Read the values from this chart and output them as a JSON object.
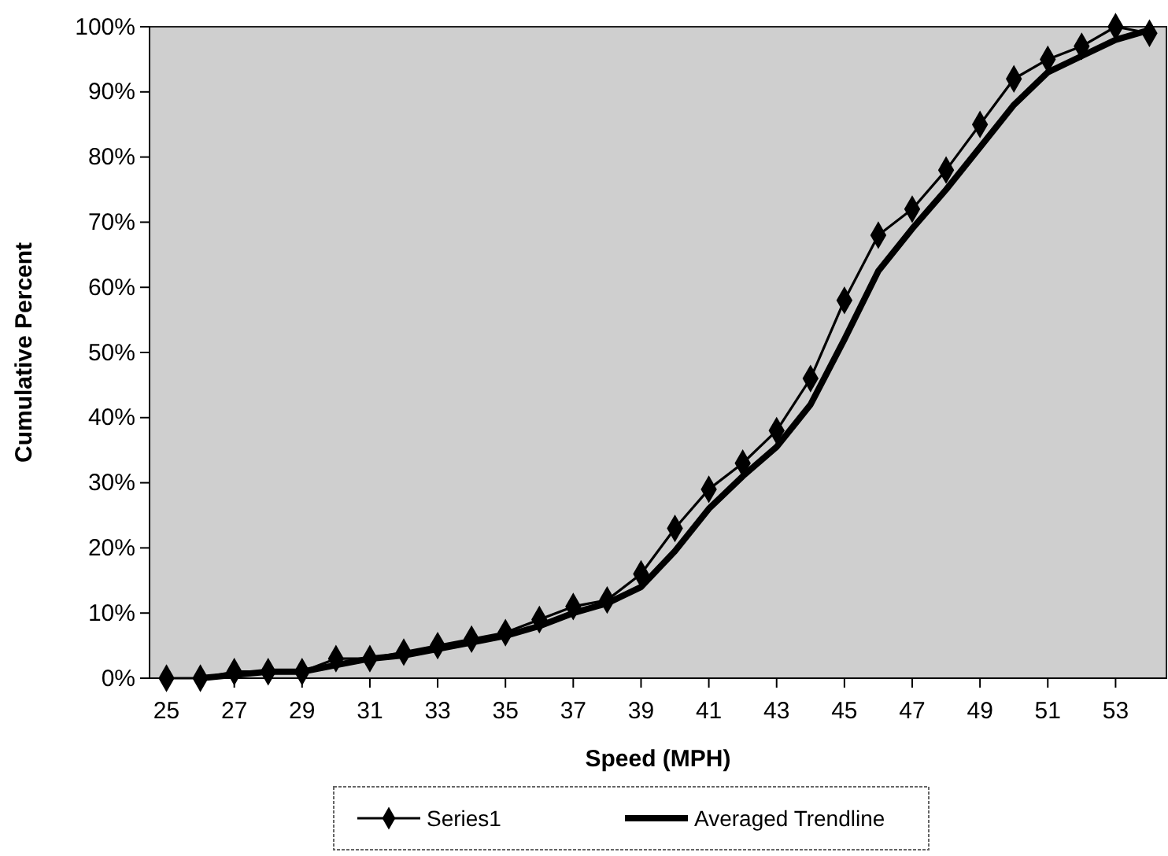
{
  "chart_data": {
    "type": "line",
    "xlabel": "Speed (MPH)",
    "ylabel": "Cumulative Percent",
    "xlim": [
      24.5,
      54.5
    ],
    "xticks": [
      25,
      27,
      29,
      31,
      33,
      35,
      37,
      39,
      41,
      43,
      45,
      47,
      49,
      51,
      53
    ],
    "ylim": [
      0,
      100
    ],
    "yticks": [
      {
        "value": 0,
        "label": "0%"
      },
      {
        "value": 10,
        "label": "10%"
      },
      {
        "value": 20,
        "label": "20%"
      },
      {
        "value": 30,
        "label": "30%"
      },
      {
        "value": 40,
        "label": "40%"
      },
      {
        "value": 50,
        "label": "50%"
      },
      {
        "value": 60,
        "label": "60%"
      },
      {
        "value": 70,
        "label": "70%"
      },
      {
        "value": 80,
        "label": "80%"
      },
      {
        "value": 90,
        "label": "90%"
      },
      {
        "value": 100,
        "label": "100%"
      }
    ],
    "grid": false,
    "legend": "bottom",
    "series": [
      {
        "name": "Series1",
        "color": "#000000",
        "marker": "diamond",
        "x": [
          25,
          26,
          27,
          28,
          29,
          30,
          31,
          32,
          33,
          34,
          35,
          36,
          37,
          38,
          39,
          40,
          41,
          42,
          43,
          44,
          45,
          46,
          47,
          48,
          49,
          50,
          51,
          52,
          53,
          54
        ],
        "values": [
          0,
          0,
          1,
          1,
          1,
          3,
          3,
          4,
          5,
          6,
          7,
          9,
          11,
          12,
          16,
          23,
          29,
          33,
          38,
          46,
          58,
          68,
          72,
          78,
          85,
          92,
          95,
          97,
          100,
          99
        ]
      },
      {
        "name": "Averaged Trendline",
        "color": "#000000",
        "marker": "none",
        "x": [
          26,
          27,
          28,
          29,
          30,
          31,
          32,
          33,
          34,
          35,
          36,
          37,
          38,
          39,
          40,
          41,
          42,
          43,
          44,
          45,
          46,
          47,
          48,
          49,
          50,
          51,
          52,
          53,
          54
        ],
        "values": [
          0,
          0.5,
          1,
          1,
          2,
          3,
          3.5,
          4.5,
          5.5,
          6.5,
          8,
          10,
          11.5,
          14,
          19.5,
          26,
          31,
          35.5,
          42,
          52,
          62.5,
          69,
          75,
          81.5,
          88,
          93,
          95.5,
          98,
          99.5
        ]
      }
    ]
  }
}
